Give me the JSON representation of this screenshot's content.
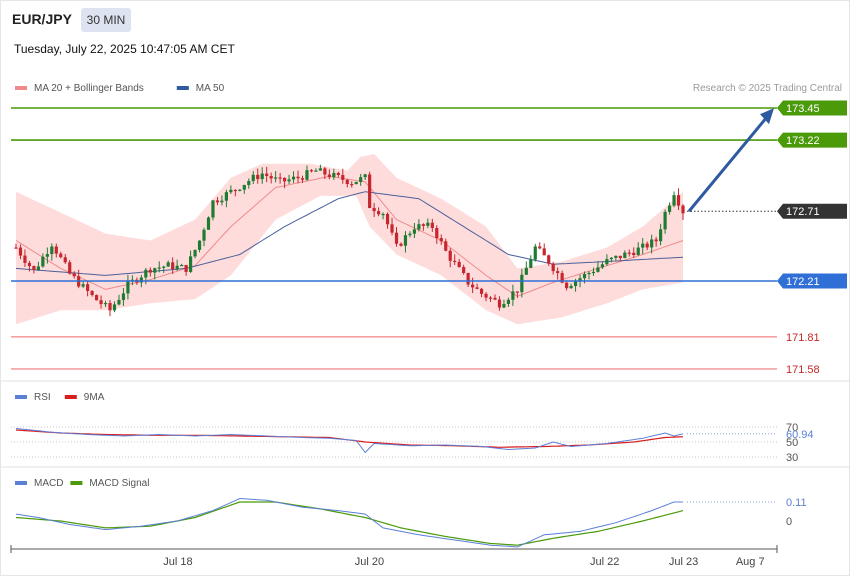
{
  "header": {
    "symbol": "EUR/JPY",
    "timeframe": "30 MIN",
    "datetime": "Tuesday, July 22, 2025 10:47:05 AM CET",
    "copyright": "Research © 2025 Trading Central"
  },
  "colors": {
    "bull": "#1e7b32",
    "bear": "#c6262e",
    "band": "#ffd6d6",
    "ma20": "#f08a8a",
    "ma50": "#4a5f9a",
    "support": "#2f6fd6",
    "target": "#4a9a0a",
    "lowlvl": "#f4a0a0",
    "rsi": "#5b7fd6",
    "rsi_ma": "#d91c1c",
    "macd": "#5b7fd6",
    "signal": "#4a9a0a",
    "arrow": "#2e5aa0"
  },
  "legend_main": [
    {
      "label": "MA 20 + Bollinger Bands",
      "color": "#f08a8a"
    },
    {
      "label": "MA 50",
      "color": "#2e5aa0"
    }
  ],
  "legend_rsi": [
    {
      "label": "RSI",
      "color": "#5b7fd6"
    },
    {
      "label": "9MA",
      "color": "#d91c1c"
    }
  ],
  "legend_macd": [
    {
      "label": "MACD",
      "color": "#5b7fd6"
    },
    {
      "label": "MACD Signal",
      "color": "#4a9a0a"
    }
  ],
  "chart_data": [
    {
      "type": "candlestick",
      "panel": "price",
      "ylim": [
        171.5,
        173.7
      ],
      "x_ticks": [
        {
          "label": "Jul 18",
          "at": 0.218
        },
        {
          "label": "Jul 20",
          "at": 0.468
        },
        {
          "label": "Jul 22",
          "at": 0.775
        },
        {
          "label": "Jul 23",
          "at": 0.878
        },
        {
          "label": "Aug 7",
          "at": 0.965
        }
      ],
      "levels": [
        {
          "label": "173.45",
          "value": 173.45,
          "kind": "target"
        },
        {
          "label": "173.22",
          "value": 173.22,
          "kind": "target"
        },
        {
          "label": "172.71",
          "value": 172.71,
          "kind": "current"
        },
        {
          "label": "172.21",
          "value": 172.21,
          "kind": "support"
        },
        {
          "label": "171.81",
          "value": 171.81,
          "kind": "low"
        },
        {
          "label": "171.58",
          "value": 171.58,
          "kind": "low"
        }
      ],
      "anchors": [
        [
          0,
          172.45
        ],
        [
          4,
          172.28
        ],
        [
          8,
          172.48
        ],
        [
          12,
          172.26
        ],
        [
          17,
          172.1
        ],
        [
          21,
          172.0
        ],
        [
          25,
          172.18
        ],
        [
          30,
          172.3
        ],
        [
          34,
          172.32
        ],
        [
          38,
          172.3
        ],
        [
          41,
          172.5
        ],
        [
          44,
          172.78
        ],
        [
          48,
          172.85
        ],
        [
          52,
          172.93
        ],
        [
          55,
          172.98
        ],
        [
          59,
          172.92
        ],
        [
          63,
          172.95
        ],
        [
          67,
          173.0
        ],
        [
          71,
          172.96
        ],
        [
          75,
          172.92
        ],
        [
          78,
          172.95
        ],
        [
          79,
          172.75
        ],
        [
          82,
          172.7
        ],
        [
          85,
          172.45
        ],
        [
          89,
          172.6
        ],
        [
          93,
          172.6
        ],
        [
          96,
          172.42
        ],
        [
          101,
          172.2
        ],
        [
          104,
          172.12
        ],
        [
          108,
          172.05
        ],
        [
          112,
          172.15
        ],
        [
          116,
          172.45
        ],
        [
          119,
          172.35
        ],
        [
          123,
          172.18
        ],
        [
          127,
          172.25
        ],
        [
          132,
          172.35
        ],
        [
          136,
          172.4
        ],
        [
          140,
          172.45
        ],
        [
          143,
          172.5
        ],
        [
          145,
          172.7
        ],
        [
          147,
          172.85
        ],
        [
          149,
          172.71
        ]
      ],
      "ma20": [
        [
          0,
          172.5
        ],
        [
          10,
          172.3
        ],
        [
          20,
          172.15
        ],
        [
          30,
          172.22
        ],
        [
          40,
          172.32
        ],
        [
          48,
          172.6
        ],
        [
          58,
          172.88
        ],
        [
          70,
          172.96
        ],
        [
          78,
          172.92
        ],
        [
          85,
          172.65
        ],
        [
          95,
          172.5
        ],
        [
          105,
          172.25
        ],
        [
          112,
          172.1
        ],
        [
          120,
          172.2
        ],
        [
          130,
          172.3
        ],
        [
          140,
          172.4
        ],
        [
          149,
          172.5
        ]
      ],
      "ma50": [
        [
          0,
          172.3
        ],
        [
          20,
          172.25
        ],
        [
          38,
          172.3
        ],
        [
          50,
          172.4
        ],
        [
          60,
          172.6
        ],
        [
          72,
          172.8
        ],
        [
          78,
          172.85
        ],
        [
          90,
          172.8
        ],
        [
          100,
          172.6
        ],
        [
          110,
          172.4
        ],
        [
          120,
          172.33
        ],
        [
          132,
          172.35
        ],
        [
          143,
          172.37
        ],
        [
          149,
          172.38
        ]
      ],
      "band_upper": [
        [
          0,
          172.85
        ],
        [
          10,
          172.7
        ],
        [
          20,
          172.55
        ],
        [
          30,
          172.5
        ],
        [
          40,
          172.65
        ],
        [
          48,
          172.95
        ],
        [
          55,
          173.05
        ],
        [
          66,
          173.05
        ],
        [
          74,
          173.0
        ],
        [
          77,
          173.1
        ],
        [
          80,
          173.12
        ],
        [
          85,
          172.95
        ],
        [
          95,
          172.8
        ],
        [
          105,
          172.6
        ],
        [
          112,
          172.3
        ],
        [
          122,
          172.35
        ],
        [
          132,
          172.45
        ],
        [
          140,
          172.6
        ],
        [
          149,
          172.85
        ]
      ],
      "band_lower": [
        [
          0,
          171.9
        ],
        [
          10,
          172.0
        ],
        [
          20,
          172.0
        ],
        [
          30,
          172.05
        ],
        [
          40,
          172.08
        ],
        [
          48,
          172.25
        ],
        [
          58,
          172.65
        ],
        [
          68,
          172.82
        ],
        [
          76,
          172.82
        ],
        [
          79,
          172.6
        ],
        [
          85,
          172.4
        ],
        [
          95,
          172.25
        ],
        [
          105,
          172.0
        ],
        [
          112,
          171.9
        ],
        [
          122,
          171.95
        ],
        [
          132,
          172.05
        ],
        [
          140,
          172.15
        ],
        [
          149,
          172.2
        ]
      ],
      "candle_count": 150
    },
    {
      "type": "line",
      "panel": "rsi",
      "ylim": [
        25,
        80
      ],
      "y_ticks": [
        70,
        50,
        30
      ],
      "value_label": "60.94",
      "series": [
        {
          "name": "RSI",
          "values": [
            [
              0,
              68
            ],
            [
              8,
              63
            ],
            [
              16,
              60
            ],
            [
              24,
              58
            ],
            [
              32,
              60
            ],
            [
              40,
              58
            ],
            [
              48,
              60
            ],
            [
              56,
              58
            ],
            [
              64,
              56
            ],
            [
              70,
              55
            ],
            [
              76,
              52
            ],
            [
              78,
              36
            ],
            [
              80,
              48
            ],
            [
              88,
              45
            ],
            [
              96,
              46
            ],
            [
              104,
              44
            ],
            [
              110,
              40
            ],
            [
              116,
              42
            ],
            [
              120,
              50
            ],
            [
              124,
              44
            ],
            [
              132,
              48
            ],
            [
              140,
              55
            ],
            [
              145,
              62
            ],
            [
              147,
              58
            ],
            [
              149,
              60.94
            ]
          ]
        },
        {
          "name": "9MA",
          "values": [
            [
              0,
              66
            ],
            [
              10,
              62
            ],
            [
              20,
              60
            ],
            [
              30,
              59
            ],
            [
              40,
              59
            ],
            [
              50,
              58
            ],
            [
              60,
              57
            ],
            [
              70,
              56
            ],
            [
              78,
              50
            ],
            [
              88,
              46
            ],
            [
              98,
              45
            ],
            [
              108,
              43
            ],
            [
              118,
              44
            ],
            [
              128,
              46
            ],
            [
              138,
              50
            ],
            [
              145,
              56
            ],
            [
              149,
              57
            ]
          ]
        }
      ]
    },
    {
      "type": "line",
      "panel": "macd",
      "ylim": [
        -0.2,
        0.18
      ],
      "y_ticks": [
        0
      ],
      "value_label": "0.11",
      "series": [
        {
          "name": "MACD",
          "values": [
            [
              0,
              0.04
            ],
            [
              5,
              0.02
            ],
            [
              12,
              -0.02
            ],
            [
              20,
              -0.05
            ],
            [
              28,
              -0.03
            ],
            [
              36,
              0.0
            ],
            [
              44,
              0.06
            ],
            [
              50,
              0.13
            ],
            [
              56,
              0.12
            ],
            [
              64,
              0.08
            ],
            [
              72,
              0.06
            ],
            [
              78,
              0.04
            ],
            [
              82,
              -0.04
            ],
            [
              90,
              -0.08
            ],
            [
              98,
              -0.11
            ],
            [
              106,
              -0.14
            ],
            [
              112,
              -0.15
            ],
            [
              118,
              -0.08
            ],
            [
              126,
              -0.06
            ],
            [
              134,
              -0.01
            ],
            [
              142,
              0.06
            ],
            [
              147,
              0.11
            ],
            [
              149,
              0.11
            ]
          ]
        },
        {
          "name": "MACD Signal",
          "values": [
            [
              0,
              0.02
            ],
            [
              10,
              0.0
            ],
            [
              20,
              -0.04
            ],
            [
              30,
              -0.03
            ],
            [
              40,
              0.02
            ],
            [
              50,
              0.11
            ],
            [
              58,
              0.11
            ],
            [
              68,
              0.07
            ],
            [
              78,
              0.02
            ],
            [
              86,
              -0.04
            ],
            [
              96,
              -0.09
            ],
            [
              106,
              -0.13
            ],
            [
              112,
              -0.14
            ],
            [
              120,
              -0.1
            ],
            [
              130,
              -0.06
            ],
            [
              140,
              0.0
            ],
            [
              149,
              0.06
            ]
          ]
        }
      ]
    }
  ]
}
